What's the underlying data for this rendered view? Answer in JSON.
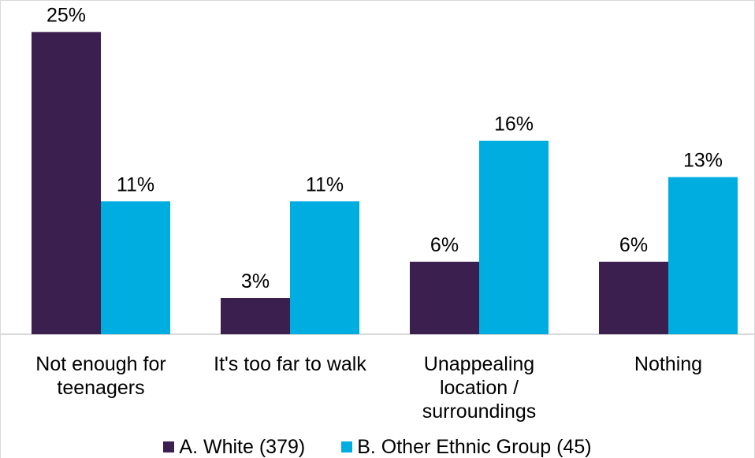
{
  "chart_data": {
    "type": "bar",
    "categories": [
      "Not enough for\nteenagers",
      "It's too far to walk",
      "Unappealing\nlocation /\nsurroundings",
      "Nothing"
    ],
    "series": [
      {
        "name": "A. White (379)",
        "values": [
          25,
          3,
          6,
          6
        ],
        "labels": [
          "25%",
          "3%",
          "6%",
          "6%"
        ],
        "color": "#3b1f4f"
      },
      {
        "name": "B. Other Ethnic Group (45)",
        "values": [
          11,
          11,
          16,
          13
        ],
        "labels": [
          "11%",
          "11%",
          "16%",
          "13%"
        ],
        "color": "#00ade1"
      }
    ],
    "ylim": [
      0,
      27
    ],
    "grid": false,
    "legend_position": "bottom"
  }
}
